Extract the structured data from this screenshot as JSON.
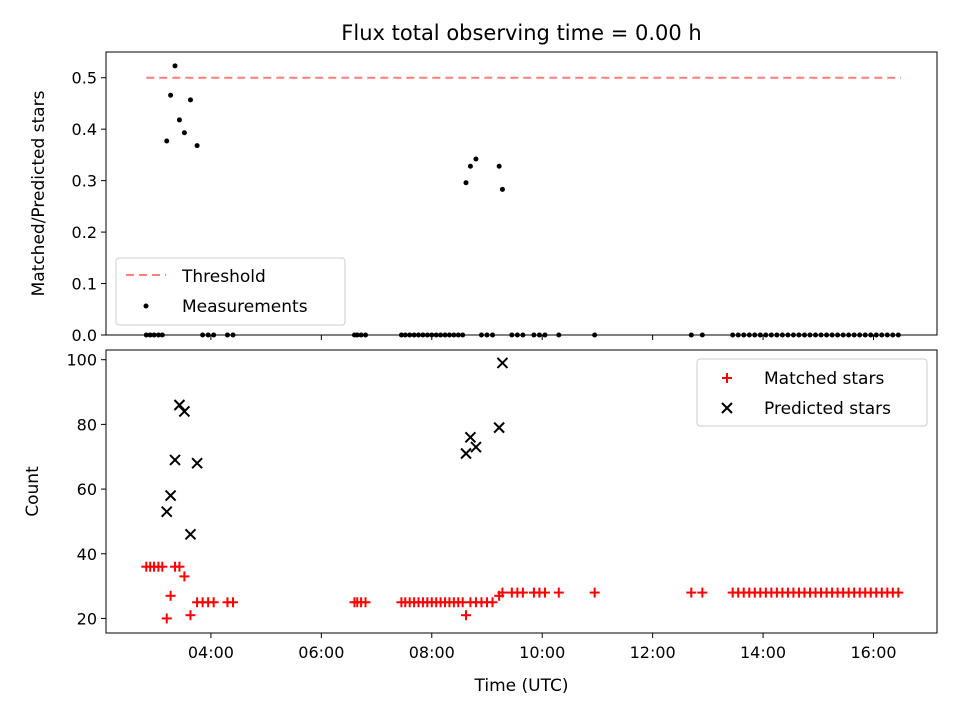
{
  "chart_data": [
    {
      "type": "scatter",
      "title": "Flux total observing time = 0.00 h",
      "xlabel": "",
      "ylabel": "Matched/Predicted stars",
      "xlim": [
        2.1,
        17.15
      ],
      "ylim": [
        0,
        0.55
      ],
      "yticks": [
        0.0,
        0.1,
        0.2,
        0.3,
        0.4,
        0.5
      ],
      "ytick_labels": [
        "0.0",
        "0.1",
        "0.2",
        "0.3",
        "0.4",
        "0.5"
      ],
      "xticks": [
        4,
        6,
        8,
        10,
        12,
        14,
        16
      ],
      "legend_position": "lower-left",
      "grid": false,
      "series": [
        {
          "name": "Threshold",
          "kind": "line",
          "style": "dashed",
          "color": "#ff7f7f",
          "x": [
            2.83,
            16.5
          ],
          "y": [
            0.5,
            0.5
          ]
        },
        {
          "name": "Measurements",
          "kind": "scatter",
          "marker": "dot",
          "color": "#000000",
          "points": [
            [
              3.2,
              0.377
            ],
            [
              3.27,
              0.466
            ],
            [
              3.35,
              0.523
            ],
            [
              3.43,
              0.418
            ],
            [
              3.52,
              0.393
            ],
            [
              3.63,
              0.457
            ],
            [
              3.75,
              0.368
            ],
            [
              8.62,
              0.296
            ],
            [
              8.7,
              0.328
            ],
            [
              8.8,
              0.342
            ],
            [
              9.22,
              0.328
            ],
            [
              9.28,
              0.283
            ],
            [
              2.83,
              0
            ],
            [
              2.9,
              0
            ],
            [
              2.97,
              0
            ],
            [
              3.05,
              0
            ],
            [
              3.12,
              0
            ],
            [
              3.85,
              0
            ],
            [
              3.95,
              0
            ],
            [
              4.05,
              0
            ],
            [
              4.3,
              0
            ],
            [
              4.4,
              0
            ],
            [
              6.6,
              0
            ],
            [
              6.65,
              0
            ],
            [
              6.72,
              0
            ],
            [
              6.8,
              0
            ],
            [
              7.45,
              0
            ],
            [
              7.52,
              0
            ],
            [
              7.6,
              0
            ],
            [
              7.68,
              0
            ],
            [
              7.76,
              0
            ],
            [
              7.84,
              0
            ],
            [
              7.92,
              0
            ],
            [
              8.0,
              0
            ],
            [
              8.08,
              0
            ],
            [
              8.16,
              0
            ],
            [
              8.24,
              0
            ],
            [
              8.32,
              0
            ],
            [
              8.4,
              0
            ],
            [
              8.48,
              0
            ],
            [
              8.56,
              0
            ],
            [
              8.9,
              0
            ],
            [
              9.0,
              0
            ],
            [
              9.1,
              0
            ],
            [
              9.45,
              0
            ],
            [
              9.55,
              0
            ],
            [
              9.65,
              0
            ],
            [
              9.85,
              0
            ],
            [
              9.95,
              0
            ],
            [
              10.05,
              0
            ],
            [
              10.3,
              0
            ],
            [
              10.95,
              0
            ],
            [
              12.7,
              0
            ],
            [
              12.9,
              0
            ],
            [
              13.45,
              0
            ],
            [
              13.55,
              0
            ],
            [
              13.65,
              0
            ],
            [
              13.75,
              0
            ],
            [
              13.85,
              0
            ],
            [
              13.95,
              0
            ],
            [
              14.05,
              0
            ],
            [
              14.15,
              0
            ],
            [
              14.25,
              0
            ],
            [
              14.35,
              0
            ],
            [
              14.45,
              0
            ],
            [
              14.55,
              0
            ],
            [
              14.65,
              0
            ],
            [
              14.75,
              0
            ],
            [
              14.85,
              0
            ],
            [
              14.95,
              0
            ],
            [
              15.05,
              0
            ],
            [
              15.15,
              0
            ],
            [
              15.25,
              0
            ],
            [
              15.35,
              0
            ],
            [
              15.45,
              0
            ],
            [
              15.55,
              0
            ],
            [
              15.65,
              0
            ],
            [
              15.75,
              0
            ],
            [
              15.85,
              0
            ],
            [
              15.95,
              0
            ],
            [
              16.05,
              0
            ],
            [
              16.15,
              0
            ],
            [
              16.25,
              0
            ],
            [
              16.35,
              0
            ],
            [
              16.45,
              0
            ]
          ]
        }
      ]
    },
    {
      "type": "scatter",
      "title": "",
      "xlabel": "Time (UTC)",
      "ylabel": "Count",
      "xlim": [
        2.1,
        17.15
      ],
      "ylim": [
        15.5,
        103
      ],
      "yticks": [
        20,
        40,
        60,
        80,
        100
      ],
      "ytick_labels": [
        "20",
        "40",
        "60",
        "80",
        "100"
      ],
      "xticks": [
        4,
        6,
        8,
        10,
        12,
        14,
        16
      ],
      "xtick_labels": [
        "04:00",
        "06:00",
        "08:00",
        "10:00",
        "12:00",
        "14:00",
        "16:00"
      ],
      "legend_position": "top-right",
      "grid": false,
      "series": [
        {
          "name": "Matched stars",
          "kind": "scatter",
          "marker": "plus",
          "color": "#ff0000",
          "points": [
            [
              2.83,
              36
            ],
            [
              2.9,
              36
            ],
            [
              2.97,
              36
            ],
            [
              3.05,
              36
            ],
            [
              3.12,
              36
            ],
            [
              3.2,
              20
            ],
            [
              3.27,
              27
            ],
            [
              3.35,
              36
            ],
            [
              3.43,
              36
            ],
            [
              3.52,
              33
            ],
            [
              3.63,
              21
            ],
            [
              3.75,
              25
            ],
            [
              3.85,
              25
            ],
            [
              3.95,
              25
            ],
            [
              4.05,
              25
            ],
            [
              4.3,
              25
            ],
            [
              4.4,
              25
            ],
            [
              6.6,
              25
            ],
            [
              6.65,
              25
            ],
            [
              6.72,
              25
            ],
            [
              6.8,
              25
            ],
            [
              7.45,
              25
            ],
            [
              7.52,
              25
            ],
            [
              7.6,
              25
            ],
            [
              7.68,
              25
            ],
            [
              7.76,
              25
            ],
            [
              7.84,
              25
            ],
            [
              7.92,
              25
            ],
            [
              8.0,
              25
            ],
            [
              8.08,
              25
            ],
            [
              8.16,
              25
            ],
            [
              8.24,
              25
            ],
            [
              8.32,
              25
            ],
            [
              8.4,
              25
            ],
            [
              8.48,
              25
            ],
            [
              8.56,
              25
            ],
            [
              8.62,
              21
            ],
            [
              8.7,
              25
            ],
            [
              8.8,
              25
            ],
            [
              8.9,
              25
            ],
            [
              9.0,
              25
            ],
            [
              9.1,
              25
            ],
            [
              9.22,
              27
            ],
            [
              9.28,
              28
            ],
            [
              9.45,
              28
            ],
            [
              9.55,
              28
            ],
            [
              9.65,
              28
            ],
            [
              9.85,
              28
            ],
            [
              9.95,
              28
            ],
            [
              10.05,
              28
            ],
            [
              10.3,
              28
            ],
            [
              10.95,
              28
            ],
            [
              12.7,
              28
            ],
            [
              12.9,
              28
            ],
            [
              13.45,
              28
            ],
            [
              13.55,
              28
            ],
            [
              13.65,
              28
            ],
            [
              13.75,
              28
            ],
            [
              13.85,
              28
            ],
            [
              13.95,
              28
            ],
            [
              14.05,
              28
            ],
            [
              14.15,
              28
            ],
            [
              14.25,
              28
            ],
            [
              14.35,
              28
            ],
            [
              14.45,
              28
            ],
            [
              14.55,
              28
            ],
            [
              14.65,
              28
            ],
            [
              14.75,
              28
            ],
            [
              14.85,
              28
            ],
            [
              14.95,
              28
            ],
            [
              15.05,
              28
            ],
            [
              15.15,
              28
            ],
            [
              15.25,
              28
            ],
            [
              15.35,
              28
            ],
            [
              15.45,
              28
            ],
            [
              15.55,
              28
            ],
            [
              15.65,
              28
            ],
            [
              15.75,
              28
            ],
            [
              15.85,
              28
            ],
            [
              15.95,
              28
            ],
            [
              16.05,
              28
            ],
            [
              16.15,
              28
            ],
            [
              16.25,
              28
            ],
            [
              16.35,
              28
            ],
            [
              16.45,
              28
            ]
          ]
        },
        {
          "name": "Predicted stars",
          "kind": "scatter",
          "marker": "x",
          "color": "#000000",
          "points": [
            [
              3.2,
              53
            ],
            [
              3.27,
              58
            ],
            [
              3.35,
              69
            ],
            [
              3.43,
              86
            ],
            [
              3.52,
              84
            ],
            [
              3.63,
              46
            ],
            [
              3.75,
              68
            ],
            [
              8.62,
              71
            ],
            [
              8.7,
              76
            ],
            [
              8.8,
              73
            ],
            [
              9.22,
              79
            ],
            [
              9.28,
              99
            ]
          ]
        }
      ]
    }
  ]
}
